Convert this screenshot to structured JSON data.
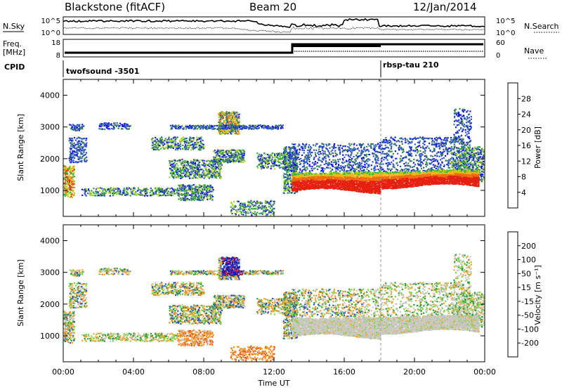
{
  "header": {
    "station": "Blackstone (fitACF)",
    "beam": "Beam 20",
    "date": "12/Jan/2014"
  },
  "noise_panel": {
    "left_label": "N.Sky",
    "right_label": "N.Search",
    "left_ticks": [
      "10^5",
      "10^0"
    ],
    "right_ticks": [
      "10^5",
      "10^0"
    ]
  },
  "freq_panel": {
    "left_label_line1": "Freq.",
    "left_label_line2": "[MHz]",
    "right_label": "Nave",
    "left_ticks": [
      "18",
      "8"
    ],
    "right_ticks": [
      "60",
      "0"
    ]
  },
  "cpid_panel": {
    "label": "CPID",
    "modes": [
      {
        "name": "twofsound -3501",
        "start_hour": 0
      },
      {
        "name": "rbsp-tau 210",
        "start_hour": 18
      }
    ]
  },
  "chart_data": [
    {
      "type": "heatmap",
      "quantity": "Power",
      "ylabel": "Slant Range [km]",
      "yticks": [
        1000,
        2000,
        3000,
        4000
      ],
      "ylim": [
        180,
        4500
      ],
      "xlim_hours": [
        0,
        24
      ],
      "colorbar": {
        "label": "Power [dB]",
        "levels": [
          0,
          4,
          8,
          12,
          16,
          20,
          24,
          28,
          32
        ],
        "tick_labels": [
          "4",
          "8",
          "12",
          "16",
          "20",
          "24",
          "28"
        ],
        "colors": [
          "#1414e6",
          "#2d55c4",
          "#3f8a4a",
          "#35b040",
          "#b0d31c",
          "#f0b418",
          "#f06a10",
          "#e62010"
        ]
      }
    },
    {
      "type": "heatmap",
      "quantity": "Velocity",
      "ylabel": "Slant Range [km]",
      "yticks": [
        1000,
        2000,
        3000,
        4000
      ],
      "ylim": [
        180,
        4500
      ],
      "xlim_hours": [
        0,
        24
      ],
      "colorbar": {
        "label": "Velocity [m s⁻¹]",
        "levels": [
          -250,
          -200,
          -100,
          -50,
          -15,
          15,
          50,
          100,
          200,
          250
        ],
        "tick_labels": [
          "200",
          "100",
          "50",
          "15",
          "-15",
          "-50",
          "-100",
          "-200"
        ],
        "colors": [
          "#e60f0f",
          "#f05a14",
          "#f58c1e",
          "#f0a532",
          "#c8c8c0",
          "#7ad240",
          "#2a9a3a",
          "#2a50c8",
          "#1414b4"
        ]
      }
    }
  ],
  "time_axis": {
    "label": "Time UT",
    "ticks": [
      "00:00",
      "04:00",
      "08:00",
      "12:00",
      "16:00",
      "20:00",
      "00:00"
    ]
  }
}
